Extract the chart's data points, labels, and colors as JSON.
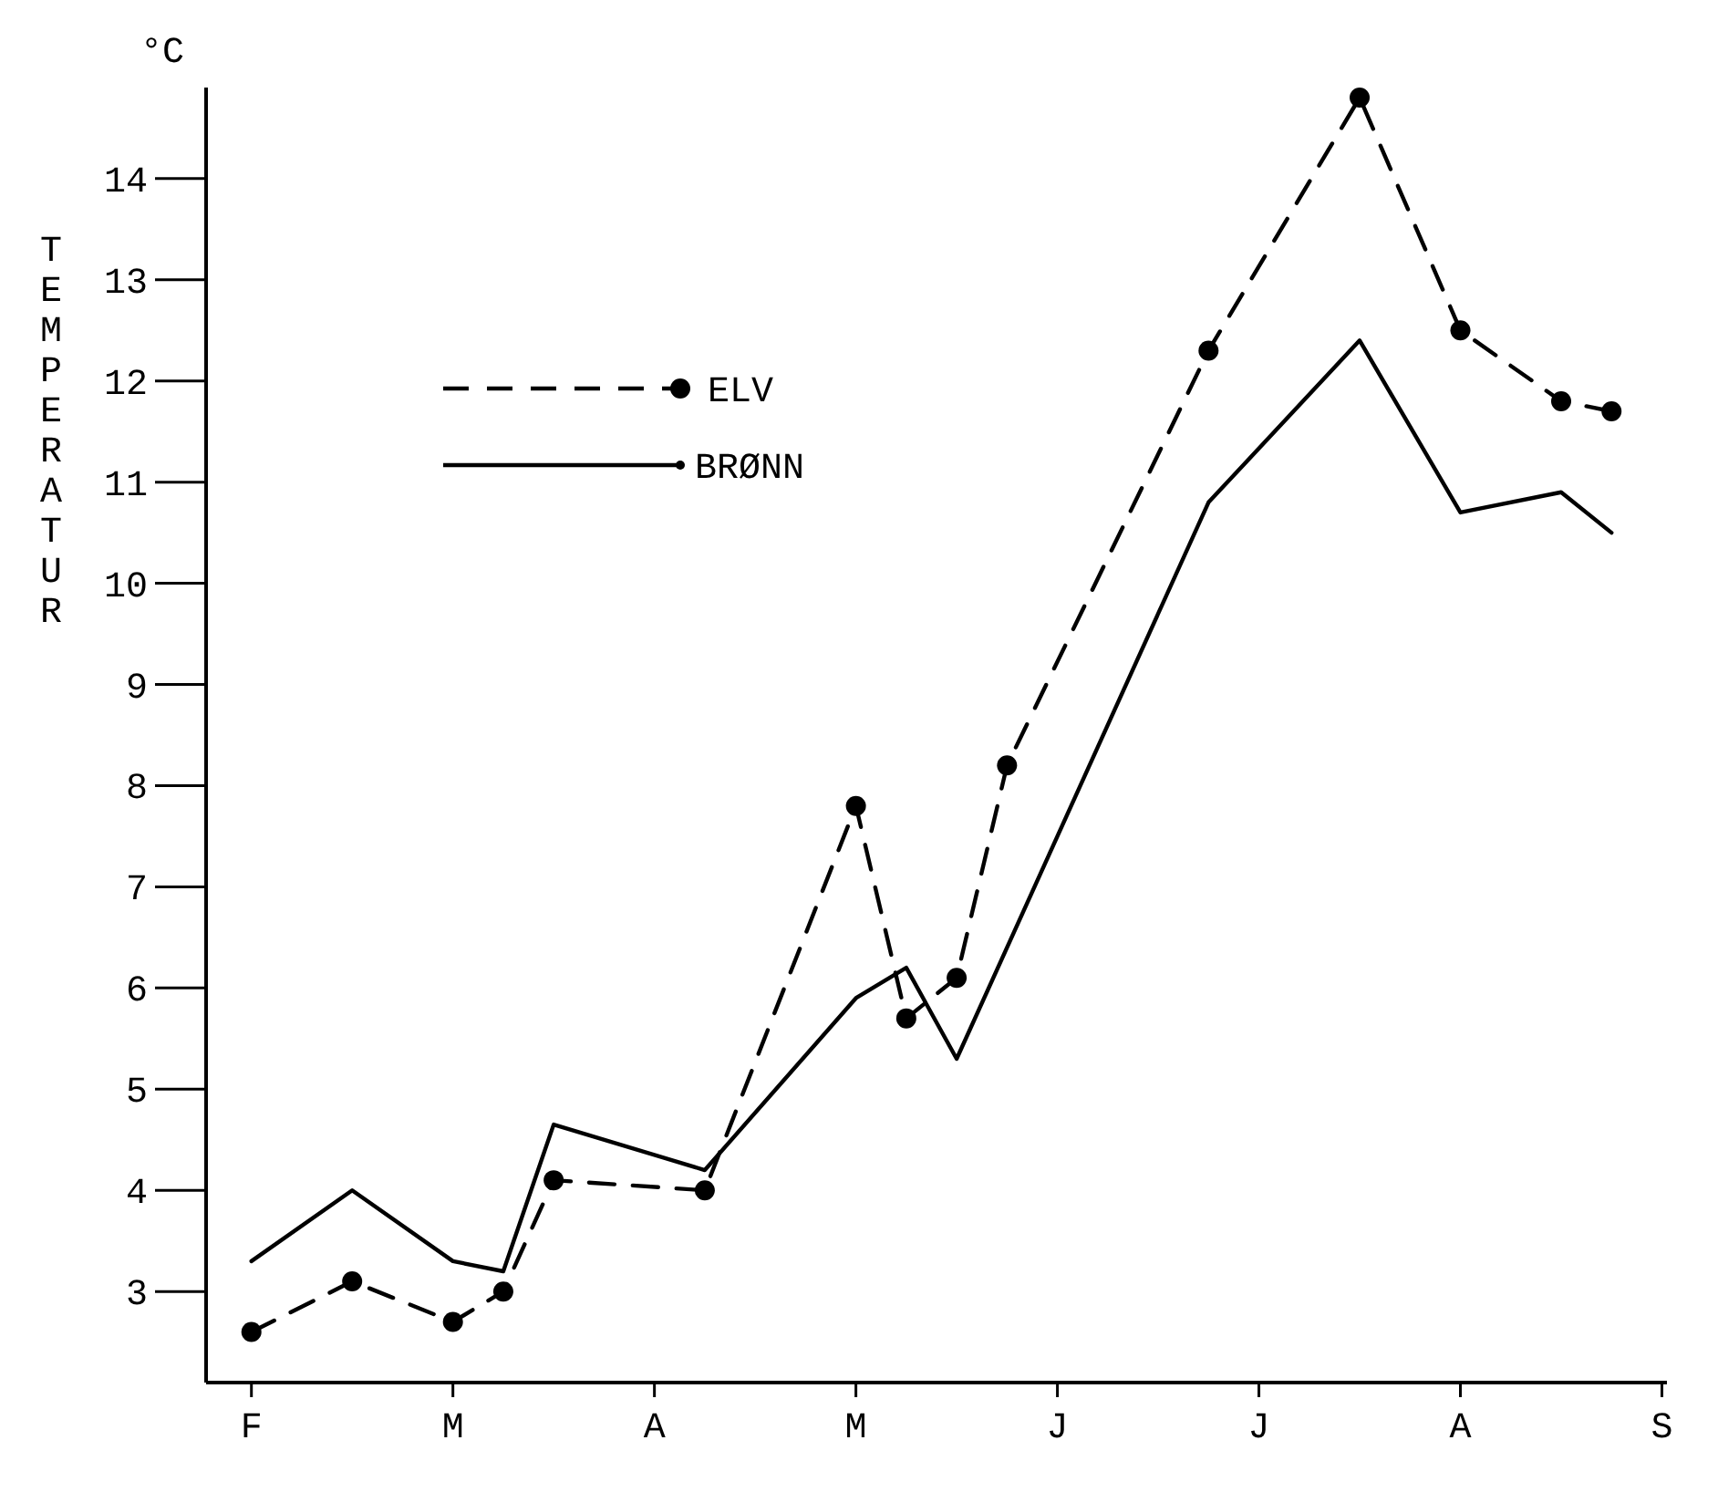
{
  "chart_data": {
    "type": "line",
    "ylabel": "TEMPERATUR",
    "annotations": [
      "°C"
    ],
    "categories": [
      "F",
      null,
      null,
      null,
      "M",
      null,
      null,
      null,
      "A",
      null,
      null,
      null,
      "M",
      null,
      null,
      null,
      "J",
      null,
      null,
      null,
      "J",
      null,
      null,
      null,
      "A",
      null,
      null,
      null,
      "S"
    ],
    "ylim": [
      2.1,
      14.9
    ],
    "yticks": [
      3,
      4,
      5,
      6,
      7,
      8,
      9,
      10,
      11,
      12,
      13,
      14
    ],
    "legend": "top left",
    "grid": false,
    "series": [
      {
        "name": "ELV",
        "color": "#000000",
        "marker": "circle",
        "line_style": "dashed",
        "values": [
          2.6,
          null,
          3.1,
          null,
          2.7,
          3.0,
          4.1,
          null,
          null,
          4.0,
          null,
          null,
          7.8,
          5.7,
          6.1,
          8.2,
          null,
          null,
          null,
          12.3,
          null,
          null,
          14.8,
          null,
          12.5,
          null,
          11.8,
          11.7,
          null
        ]
      },
      {
        "name": "BRØNN",
        "color": "#000000",
        "marker": "none",
        "line_style": "solid",
        "values": [
          3.3,
          null,
          4.0,
          null,
          3.3,
          3.2,
          4.65,
          null,
          null,
          4.2,
          null,
          null,
          5.9,
          6.2,
          5.3,
          null,
          null,
          null,
          null,
          10.8,
          null,
          null,
          12.4,
          null,
          10.7,
          null,
          10.9,
          10.5,
          null
        ]
      }
    ]
  }
}
